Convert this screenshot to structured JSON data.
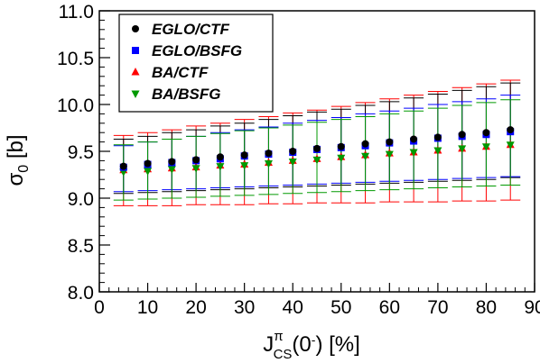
{
  "chart_data": {
    "type": "scatter",
    "xlabel_main": "J",
    "xlabel_sup": "π",
    "xlabel_sub": "CS",
    "xlabel_tail": "(0",
    "xlabel_tail_sup": "-",
    "xlabel_end": ") [%]",
    "ylabel_main": "σ",
    "ylabel_sub": "0",
    "ylabel_tail": " [b]",
    "xlim": [
      0,
      90
    ],
    "ylim": [
      8.0,
      11.0
    ],
    "x_ticks": [
      "0",
      "10",
      "20",
      "30",
      "40",
      "50",
      "60",
      "70",
      "80",
      "90"
    ],
    "y_ticks": [
      "8.0",
      "8.5",
      "9.0",
      "9.5",
      "10.0",
      "10.5",
      "11.0"
    ],
    "legend_position": "top-left",
    "x": [
      5,
      10,
      15,
      20,
      25,
      30,
      35,
      40,
      45,
      50,
      55,
      60,
      65,
      70,
      75,
      80,
      85
    ],
    "series": [
      {
        "name": "EGLO/CTF",
        "color": "#000000",
        "marker": "circle",
        "values": [
          9.34,
          9.37,
          9.39,
          9.41,
          9.44,
          9.46,
          9.48,
          9.5,
          9.53,
          9.55,
          9.58,
          9.6,
          9.63,
          9.65,
          9.68,
          9.7,
          9.73
        ],
        "err_low": [
          9.05,
          9.06,
          9.07,
          9.08,
          9.09,
          9.1,
          9.11,
          9.12,
          9.13,
          9.14,
          9.15,
          9.16,
          9.17,
          9.18,
          9.19,
          9.2,
          9.22
        ],
        "err_high": [
          9.63,
          9.66,
          9.7,
          9.73,
          9.77,
          9.8,
          9.84,
          9.88,
          9.92,
          9.95,
          9.99,
          10.03,
          10.07,
          10.11,
          10.15,
          10.19,
          10.23
        ]
      },
      {
        "name": "EGLO/BSFG",
        "color": "#0000ff",
        "marker": "square",
        "values": [
          9.33,
          9.36,
          9.38,
          9.4,
          9.42,
          9.45,
          9.47,
          9.49,
          9.52,
          9.54,
          9.56,
          9.59,
          9.61,
          9.64,
          9.66,
          9.68,
          9.71
        ],
        "err_low": [
          9.07,
          9.08,
          9.09,
          9.1,
          9.11,
          9.12,
          9.13,
          9.14,
          9.15,
          9.16,
          9.17,
          9.18,
          9.19,
          9.2,
          9.21,
          9.22,
          9.23
        ],
        "err_high": [
          9.56,
          9.6,
          9.63,
          9.66,
          9.7,
          9.73,
          9.76,
          9.8,
          9.83,
          9.86,
          9.9,
          9.93,
          9.96,
          10.0,
          10.03,
          10.06,
          10.1
        ]
      },
      {
        "name": "BA/CTF",
        "color": "#ff0000",
        "marker": "triangle-up",
        "values": [
          9.3,
          9.31,
          9.32,
          9.33,
          9.35,
          9.36,
          9.38,
          9.4,
          9.42,
          9.44,
          9.46,
          9.48,
          9.49,
          9.51,
          9.53,
          9.55,
          9.57
        ],
        "err_low": [
          8.92,
          8.92,
          8.92,
          8.93,
          8.93,
          8.93,
          8.94,
          8.94,
          8.95,
          8.95,
          8.95,
          8.96,
          8.96,
          8.96,
          8.97,
          8.97,
          8.98
        ],
        "err_high": [
          9.67,
          9.7,
          9.73,
          9.77,
          9.8,
          9.84,
          9.87,
          9.91,
          9.94,
          9.98,
          10.02,
          10.06,
          10.1,
          10.14,
          10.18,
          10.22,
          10.26
        ]
      },
      {
        "name": "BA/BSFG",
        "color": "#009900",
        "marker": "triangle-down",
        "values": [
          9.28,
          9.29,
          9.31,
          9.32,
          9.34,
          9.35,
          9.37,
          9.39,
          9.41,
          9.43,
          9.45,
          9.47,
          9.49,
          9.51,
          9.53,
          9.55,
          9.57
        ],
        "err_low": [
          8.98,
          8.99,
          9.0,
          9.01,
          9.02,
          9.03,
          9.04,
          9.05,
          9.06,
          9.07,
          9.08,
          9.09,
          9.1,
          9.11,
          9.12,
          9.13,
          9.14
        ],
        "err_high": [
          9.57,
          9.6,
          9.63,
          9.66,
          9.69,
          9.72,
          9.75,
          9.78,
          9.81,
          9.84,
          9.87,
          9.9,
          9.93,
          9.96,
          9.99,
          10.02,
          10.05
        ]
      }
    ]
  }
}
